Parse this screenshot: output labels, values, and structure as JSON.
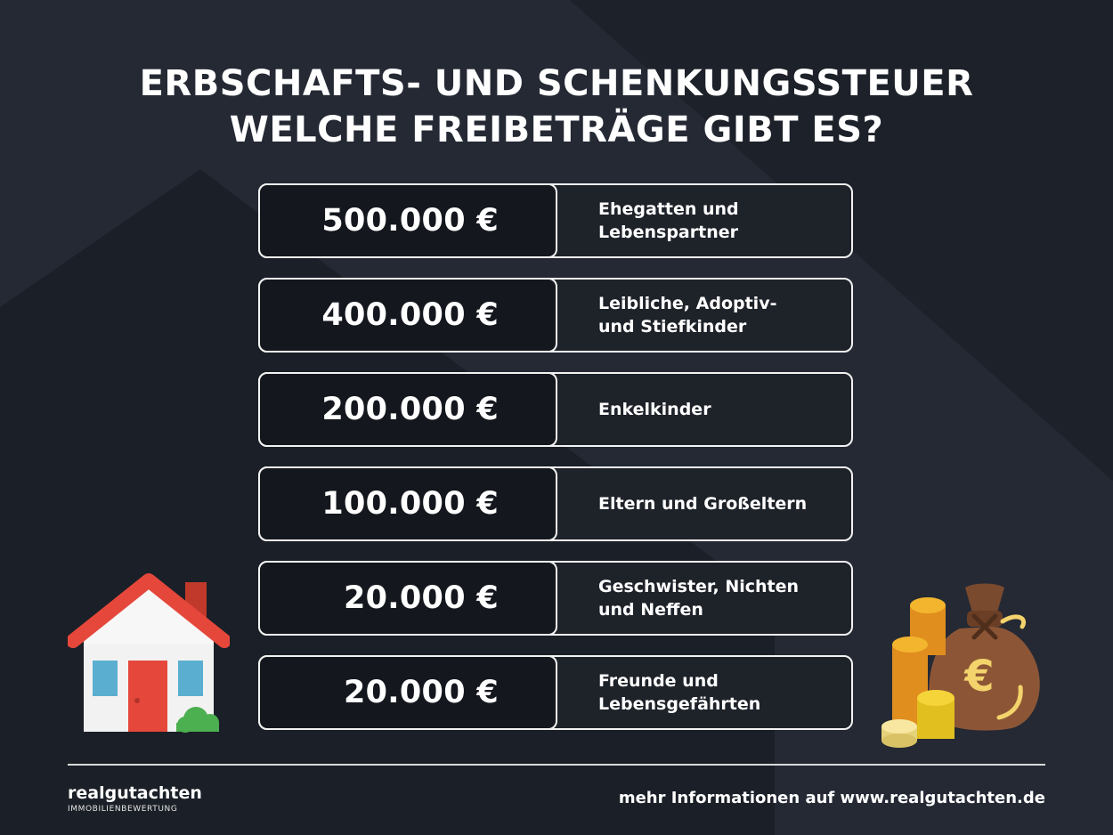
{
  "title": {
    "line1": "ERBSCHAFTS- UND SCHENKUNGSSTEUER",
    "line2": "WELCHE FREIBETRÄGE GIBT ES?"
  },
  "rows": [
    {
      "amount": "500.000 €",
      "label": "Ehegatten und\nLebenspartner"
    },
    {
      "amount": "400.000 €",
      "label": "Leibliche, Adoptiv-\nund Stiefkinder"
    },
    {
      "amount": "200.000 €",
      "label": "Enkelkinder"
    },
    {
      "amount": "100.000 €",
      "label": "Eltern und Großeltern"
    },
    {
      "amount": "20.000 €",
      "label": "Geschwister, Nichten\nund  Neffen"
    },
    {
      "amount": "20.000 €",
      "label": "Freunde und\nLebensgefährten"
    }
  ],
  "footer": {
    "brand": "realgutachten",
    "brand_sub": "IMMOBILIENBEWERTUNG",
    "info": "mehr Informationen auf www.realgutachten.de"
  },
  "icons": {
    "house": "house-icon",
    "money": "money-bag-icon",
    "coins": "coins-icon"
  },
  "colors": {
    "background": "#1b1f27",
    "amount_box": "#14171d",
    "border": "#f2f2f2",
    "roof": "#e5483b",
    "door": "#e5483b",
    "window": "#5aaed0",
    "bag": "#8c5636",
    "coin": "#f3b52d"
  }
}
